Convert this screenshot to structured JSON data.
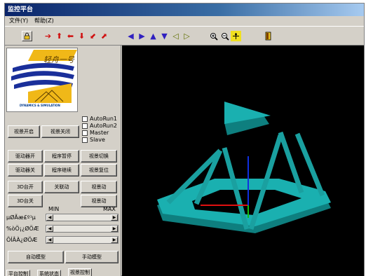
{
  "app": {
    "title": "监控平台"
  },
  "menu": {
    "file": "文件(Y)",
    "help": "帮助(Z)"
  },
  "toolbar": {
    "icons": [
      "lock-icon",
      "arrow-right-icon",
      "arrow-up-icon",
      "arrow-left-icon",
      "arrow-down-icon",
      "arrow-diag-down-icon",
      "arrow-diag-up-icon",
      "rotate-left-icon",
      "rotate-right-icon",
      "rotate-up-icon",
      "rotate-down-icon",
      "translate-left-icon",
      "translate-right-icon",
      "zoom-in-icon",
      "zoom-out-icon",
      "move-icon",
      "exit-icon"
    ]
  },
  "logo": {
    "text": "轻舟一号",
    "subtitle": "DYNAMICS & SIMULATION"
  },
  "controls": {
    "view_open": "视景开启",
    "view_close": "视景关闭",
    "checkboxes": [
      "AutoRun1",
      "AutoRun2",
      "Master",
      "Slave"
    ],
    "row1": [
      "驱动器开",
      "程序暂停",
      "视景切换"
    ],
    "row2": [
      "驱动器关",
      "程序继续",
      "视景复位"
    ],
    "row3": [
      "3D台开",
      "关联动",
      "视景动"
    ],
    "row4": [
      "3D台关",
      "",
      "视景动"
    ],
    "min_label": "MIN",
    "max_label": "MAX",
    "sliders": [
      "µØÃæ£º¹µ",
      "%òÖ¡¿ØÖÆ",
      "ÖÍÂÀ¿ØÖÆ"
    ],
    "bottom": [
      "自动模型",
      "手动模型"
    ]
  },
  "tabs": [
    "平台控制",
    "系统状态",
    "视景控制"
  ],
  "colors": {
    "platform": "#19a3a3",
    "axis_x": "#e01010",
    "axis_y": "#10c010",
    "axis_z": "#1030e0"
  }
}
